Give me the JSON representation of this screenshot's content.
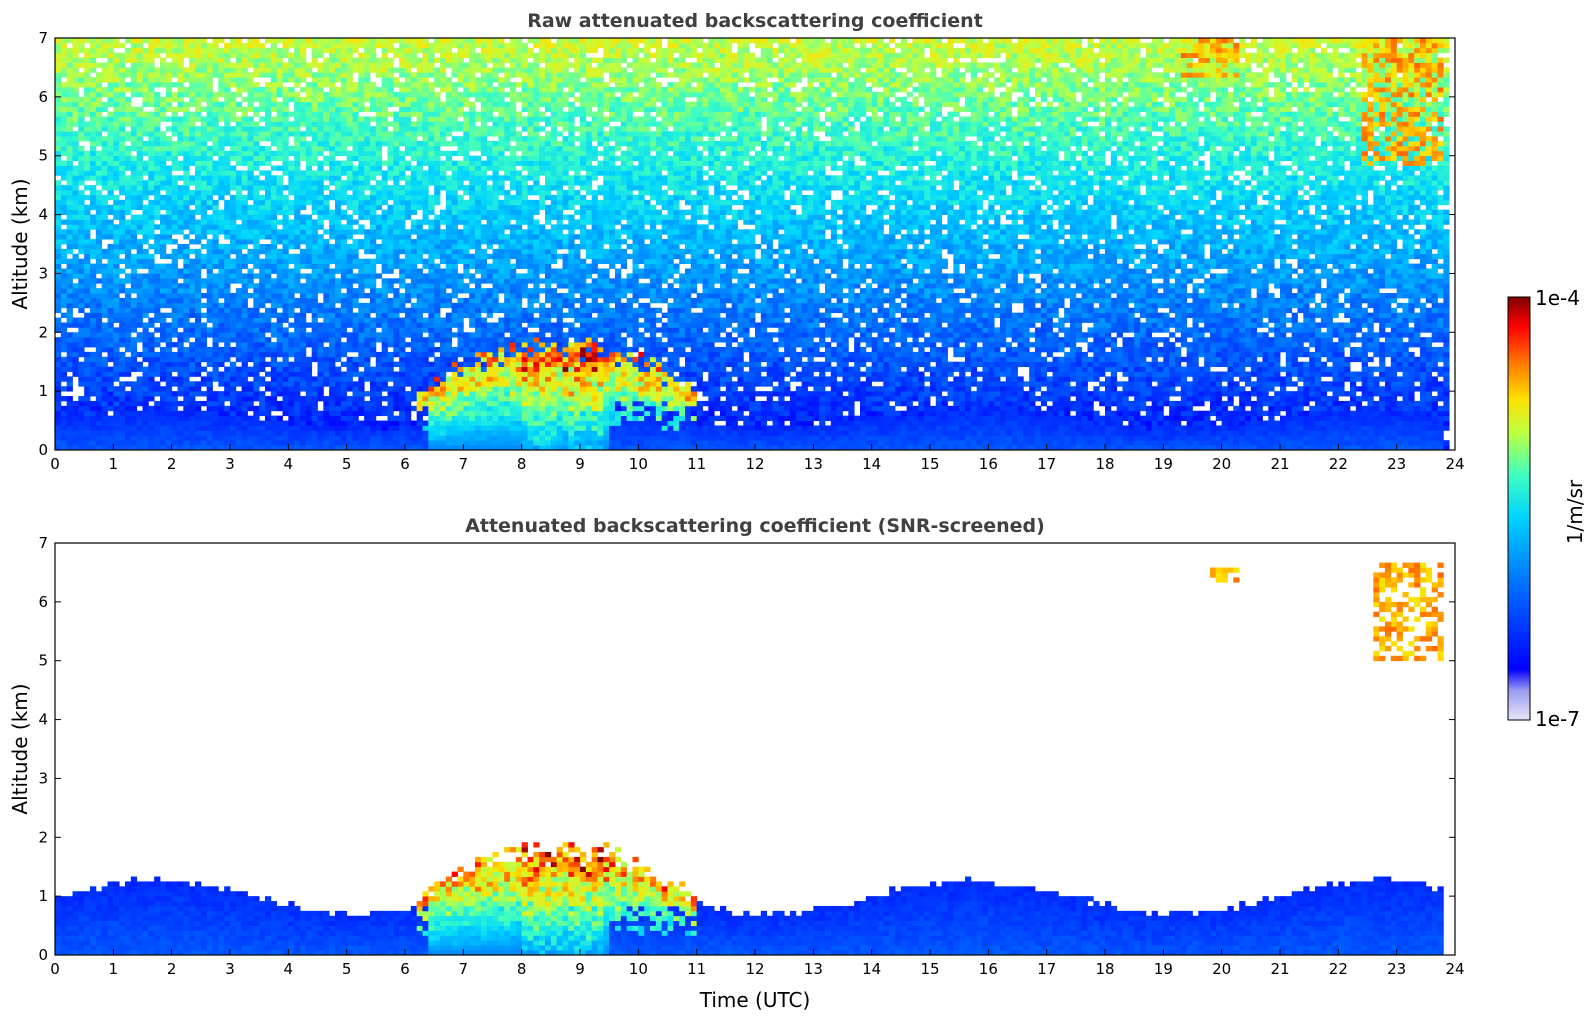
{
  "chart_data": [
    {
      "type": "heatmap",
      "title": "Raw attenuated backscattering coefficient",
      "xlabel": "",
      "ylabel": "Altitude (km)",
      "xlim": [
        0,
        24
      ],
      "ylim": [
        0,
        7
      ],
      "xticks": [
        "0",
        "1",
        "2",
        "3",
        "4",
        "5",
        "6",
        "7",
        "8",
        "9",
        "10",
        "11",
        "12",
        "13",
        "14",
        "15",
        "16",
        "17",
        "18",
        "19",
        "20",
        "21",
        "22",
        "23",
        "24"
      ],
      "yticks": [
        "0",
        "1",
        "2",
        "3",
        "4",
        "5",
        "6",
        "7"
      ],
      "grid": false,
      "color_scale": "log",
      "clim": [
        1e-07,
        0.0001
      ],
      "noise": "high",
      "features": [
        {
          "kind": "boundary-layer",
          "t_start": 0,
          "t_end": 23.8,
          "z_top": 0.6
        },
        {
          "kind": "aerosol-cloud",
          "t_start": 6.2,
          "t_end": 11.0,
          "z_bottom": 0,
          "z_top": 1.9
        },
        {
          "kind": "cirrus",
          "t_start": 19.3,
          "t_end": 20.3,
          "z_bottom": 6.3,
          "z_top": 7.0
        },
        {
          "kind": "cirrus",
          "t_start": 22.4,
          "t_end": 23.8,
          "z_bottom": 4.8,
          "z_top": 7.0
        }
      ]
    },
    {
      "type": "heatmap",
      "title": "Attenuated backscattering coefficient (SNR-screened)",
      "xlabel": "Time (UTC)",
      "ylabel": "Altitude (km)",
      "xlim": [
        0,
        24
      ],
      "ylim": [
        0,
        7
      ],
      "xticks": [
        "0",
        "1",
        "2",
        "3",
        "4",
        "5",
        "6",
        "7",
        "8",
        "9",
        "10",
        "11",
        "12",
        "13",
        "14",
        "15",
        "16",
        "17",
        "18",
        "19",
        "20",
        "21",
        "22",
        "23",
        "24"
      ],
      "yticks": [
        "0",
        "1",
        "2",
        "3",
        "4",
        "5",
        "6",
        "7"
      ],
      "grid": false,
      "color_scale": "log",
      "clim": [
        1e-07,
        0.0001
      ],
      "noise": "screened",
      "features": [
        {
          "kind": "boundary-layer",
          "t_start": 0,
          "t_end": 23.8,
          "z_top": 1.1
        },
        {
          "kind": "aerosol-cloud",
          "t_start": 6.2,
          "t_end": 11.0,
          "z_bottom": 0,
          "z_top": 1.9
        },
        {
          "kind": "cirrus",
          "t_start": 19.8,
          "t_end": 20.3,
          "z_bottom": 6.35,
          "z_top": 6.6
        },
        {
          "kind": "cirrus",
          "t_start": 22.6,
          "t_end": 23.8,
          "z_bottom": 5.0,
          "z_top": 6.7
        }
      ]
    }
  ],
  "colorbar": {
    "label": "1/m/sr",
    "min_label": "1e-7",
    "max_label": "1e-4",
    "scale": "log",
    "colormap": "jet",
    "colors": [
      "#e6e6f8",
      "#0000ff",
      "#00a0ff",
      "#00e5e5",
      "#7fff7f",
      "#ffff00",
      "#ff8000",
      "#ff0000",
      "#800000"
    ]
  }
}
